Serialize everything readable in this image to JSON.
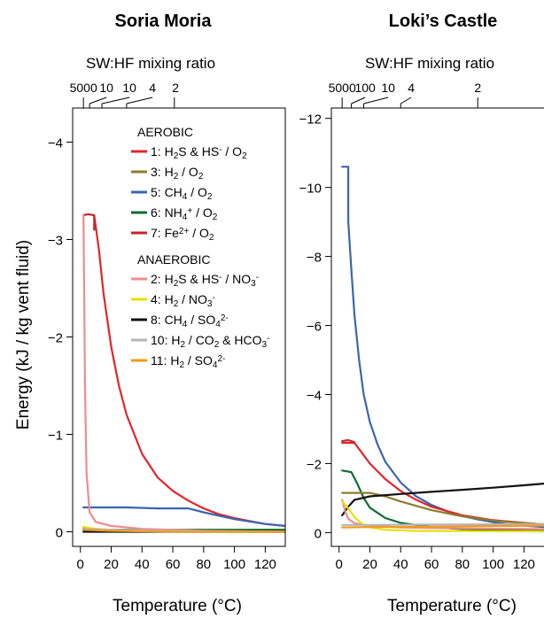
{
  "ylabel": "Energy (kJ / kg vent  fluid)",
  "chart_data": [
    {
      "type": "line",
      "title": "Soria Moria",
      "xlabel": "Temperature (°C)",
      "top_axis_label": "SW:HF mixing ratio",
      "top_ticks": [
        {
          "label": "5000",
          "t": 2
        },
        {
          "label": "10",
          "t": 6
        },
        {
          "label": "10",
          "t": 14
        },
        {
          "label": "4",
          "t": 30
        },
        {
          "label": "2",
          "t": 61
        }
      ],
      "xlim": [
        -5,
        133
      ],
      "ylim": [
        0.15,
        -4.35
      ],
      "x_ticks": [
        0,
        20,
        40,
        60,
        80,
        100,
        120
      ],
      "y_ticks": [
        0,
        -1,
        -2,
        -3,
        -4
      ],
      "legend_headers": [
        "AEROBIC",
        "ANAEROBIC"
      ],
      "series": [
        {
          "name": "1: H₂S & HS⁻ / O₂",
          "color": "#e0262b",
          "points": [
            [
              9,
              -3.25
            ],
            [
              12,
              -2.9
            ],
            [
              15,
              -2.45
            ],
            [
              20,
              -1.9
            ],
            [
              25,
              -1.5
            ],
            [
              30,
              -1.2
            ],
            [
              40,
              -0.8
            ],
            [
              50,
              -0.56
            ],
            [
              60,
              -0.42
            ],
            [
              70,
              -0.32
            ],
            [
              80,
              -0.24
            ],
            [
              90,
              -0.18
            ],
            [
              100,
              -0.14
            ],
            [
              110,
              -0.11
            ],
            [
              120,
              -0.08
            ],
            [
              133,
              -0.06
            ]
          ]
        },
        {
          "name": "3: H₂ / O₂",
          "color": "#8b7d2a",
          "points": [
            [
              2,
              -0.04
            ],
            [
              5,
              -0.02
            ],
            [
              10,
              -0.02
            ],
            [
              40,
              -0.02
            ],
            [
              80,
              -0.02
            ],
            [
              133,
              -0.02
            ]
          ]
        },
        {
          "name": "5: CH₄ / O₂",
          "color": "#3a65b0",
          "points": [
            [
              2,
              -0.25
            ],
            [
              10,
              -0.25
            ],
            [
              30,
              -0.25
            ],
            [
              50,
              -0.24
            ],
            [
              70,
              -0.24
            ],
            [
              80,
              -0.2
            ],
            [
              100,
              -0.13
            ],
            [
              120,
              -0.08
            ],
            [
              133,
              -0.06
            ]
          ]
        },
        {
          "name": "6: NH₄⁺ / O₂",
          "color": "#0d6b35",
          "points": [
            [
              2,
              -0.02
            ],
            [
              20,
              -0.02
            ],
            [
              60,
              -0.02
            ],
            [
              100,
              -0.02
            ],
            [
              133,
              -0.02
            ]
          ]
        },
        {
          "name": "7: Fe²⁺ / O₂",
          "color": "#c4262e",
          "points": [
            [
              2,
              -3.25
            ],
            [
              5,
              -3.26
            ],
            [
              9,
              -3.25
            ],
            [
              9,
              -3.1
            ]
          ]
        },
        {
          "name": "2: H₂S & HS⁻ / NO₃⁻",
          "color": "#f08c8c",
          "points": [
            [
              2,
              -3.25
            ],
            [
              2.5,
              -2.5
            ],
            [
              3,
              -1.5
            ],
            [
              4,
              -0.6
            ],
            [
              6,
              -0.2
            ],
            [
              10,
              -0.1
            ],
            [
              20,
              -0.06
            ],
            [
              40,
              -0.03
            ],
            [
              80,
              -0.01
            ],
            [
              133,
              0
            ]
          ]
        },
        {
          "name": "4: H₂ / NO₃⁻",
          "color": "#e8e000",
          "points": [
            [
              2,
              -0.05
            ],
            [
              5,
              -0.04
            ],
            [
              10,
              -0.03
            ],
            [
              20,
              -0.02
            ],
            [
              40,
              -0.01
            ],
            [
              80,
              0
            ],
            [
              133,
              0
            ]
          ]
        },
        {
          "name": "8: CH₄ / SO₄²⁻",
          "color": "#111111",
          "points": [
            [
              2,
              0
            ],
            [
              40,
              0
            ],
            [
              80,
              0
            ],
            [
              133,
              0
            ]
          ]
        },
        {
          "name": "10: H₂ / CO₂ & HCO₃⁻",
          "color": "#b5b5b5",
          "points": [
            [
              2,
              -0.03
            ],
            [
              20,
              -0.02
            ],
            [
              60,
              -0.01
            ],
            [
              133,
              0
            ]
          ]
        },
        {
          "name": "11: H₂ / SO₄²⁻",
          "color": "#f29a1e",
          "points": [
            [
              2,
              -0.02
            ],
            [
              20,
              -0.01
            ],
            [
              60,
              0
            ],
            [
              133,
              0
            ]
          ]
        }
      ]
    },
    {
      "type": "line",
      "title": "Loki’s Castle",
      "xlabel": "Temperature (°C)",
      "top_axis_label": "SW:HF mixing ratio",
      "top_ticks": [
        {
          "label": "5000",
          "t": 2
        },
        {
          "label": "100",
          "t": 8
        },
        {
          "label": "10",
          "t": 16
        },
        {
          "label": "4",
          "t": 40
        },
        {
          "label": "2",
          "t": 90
        }
      ],
      "xlim": [
        -5,
        133
      ],
      "ylim": [
        0.4,
        -12.3
      ],
      "x_ticks": [
        0,
        20,
        40,
        60,
        80,
        100,
        120
      ],
      "y_ticks": [
        0,
        -2,
        -4,
        -6,
        -8,
        -10,
        -12
      ],
      "series": [
        {
          "name": "5: CH₄ / O₂",
          "color": "#3a65b0",
          "points": [
            [
              2,
              -10.6
            ],
            [
              6,
              -10.6
            ],
            [
              6,
              -9
            ],
            [
              8,
              -7.6
            ],
            [
              10,
              -6.3
            ],
            [
              13,
              -5
            ],
            [
              16,
              -4
            ],
            [
              20,
              -3.2
            ],
            [
              25,
              -2.55
            ],
            [
              30,
              -2.05
            ],
            [
              40,
              -1.45
            ],
            [
              50,
              -1.05
            ],
            [
              60,
              -0.8
            ],
            [
              70,
              -0.62
            ],
            [
              80,
              -0.48
            ],
            [
              90,
              -0.38
            ],
            [
              100,
              -0.3
            ],
            [
              110,
              -0.24
            ],
            [
              120,
              -0.2
            ],
            [
              133,
              -0.16
            ]
          ]
        },
        {
          "name": "1: H₂S & HS⁻ / O₂",
          "color": "#e0262b",
          "points": [
            [
              2,
              -2.6
            ],
            [
              10,
              -2.6
            ],
            [
              15,
              -2.3
            ],
            [
              20,
              -2.0
            ],
            [
              30,
              -1.55
            ],
            [
              40,
              -1.2
            ],
            [
              50,
              -0.95
            ],
            [
              60,
              -0.75
            ],
            [
              80,
              -0.5
            ],
            [
              100,
              -0.36
            ],
            [
              120,
              -0.28
            ],
            [
              133,
              -0.24
            ]
          ]
        },
        {
          "name": "7: Fe²⁺ / O₂",
          "color": "#c4262e",
          "points": [
            [
              2,
              -2.65
            ],
            [
              6,
              -2.68
            ],
            [
              10,
              -2.62
            ]
          ]
        },
        {
          "name": "6: NH₄⁺ / O₂",
          "color": "#0d6b35",
          "points": [
            [
              2,
              -1.8
            ],
            [
              8,
              -1.75
            ],
            [
              12,
              -1.4
            ],
            [
              16,
              -1.0
            ],
            [
              20,
              -0.72
            ],
            [
              30,
              -0.42
            ],
            [
              40,
              -0.28
            ],
            [
              60,
              -0.16
            ],
            [
              80,
              -0.1
            ],
            [
              100,
              -0.07
            ],
            [
              133,
              -0.05
            ]
          ]
        },
        {
          "name": "3: H₂ / O₂",
          "color": "#8b7d2a",
          "points": [
            [
              2,
              -1.15
            ],
            [
              20,
              -1.15
            ],
            [
              30,
              -1.05
            ],
            [
              40,
              -0.9
            ],
            [
              60,
              -0.65
            ],
            [
              80,
              -0.47
            ],
            [
              100,
              -0.35
            ],
            [
              120,
              -0.27
            ],
            [
              133,
              -0.23
            ]
          ]
        },
        {
          "name": "8: CH₄ / SO₄²⁻",
          "color": "#111111",
          "points": [
            [
              2,
              -0.5
            ],
            [
              6,
              -0.75
            ],
            [
              10,
              -0.95
            ],
            [
              20,
              -1.05
            ],
            [
              40,
              -1.12
            ],
            [
              60,
              -1.18
            ],
            [
              80,
              -1.24
            ],
            [
              100,
              -1.3
            ],
            [
              120,
              -1.37
            ],
            [
              133,
              -1.42
            ]
          ]
        },
        {
          "name": "2: H₂S & HS⁻ / NO₃⁻",
          "color": "#f08c8c",
          "points": [
            [
              2,
              -0.95
            ],
            [
              4,
              -0.6
            ],
            [
              6,
              -0.4
            ],
            [
              10,
              -0.27
            ],
            [
              20,
              -0.2
            ],
            [
              40,
              -0.15
            ],
            [
              80,
              -0.12
            ],
            [
              133,
              -0.1
            ]
          ]
        },
        {
          "name": "4: H₂ / NO₃⁻",
          "color": "#e8e000",
          "points": [
            [
              2,
              -0.9
            ],
            [
              6,
              -0.7
            ],
            [
              10,
              -0.45
            ],
            [
              15,
              -0.25
            ],
            [
              20,
              -0.15
            ],
            [
              30,
              -0.08
            ],
            [
              50,
              -0.05
            ],
            [
              133,
              -0.03
            ]
          ]
        },
        {
          "name": "10: H₂ / CO₂ & HCO₃⁻",
          "color": "#b5b5b5",
          "points": [
            [
              2,
              -0.22
            ],
            [
              20,
              -0.22
            ],
            [
              60,
              -0.23
            ],
            [
              100,
              -0.24
            ],
            [
              133,
              -0.25
            ]
          ]
        },
        {
          "name": "11: H₂ / SO₄²⁻",
          "color": "#f29a1e",
          "points": [
            [
              2,
              -0.15
            ],
            [
              20,
              -0.16
            ],
            [
              60,
              -0.17
            ],
            [
              100,
              -0.19
            ],
            [
              133,
              -0.2
            ]
          ]
        }
      ]
    }
  ]
}
